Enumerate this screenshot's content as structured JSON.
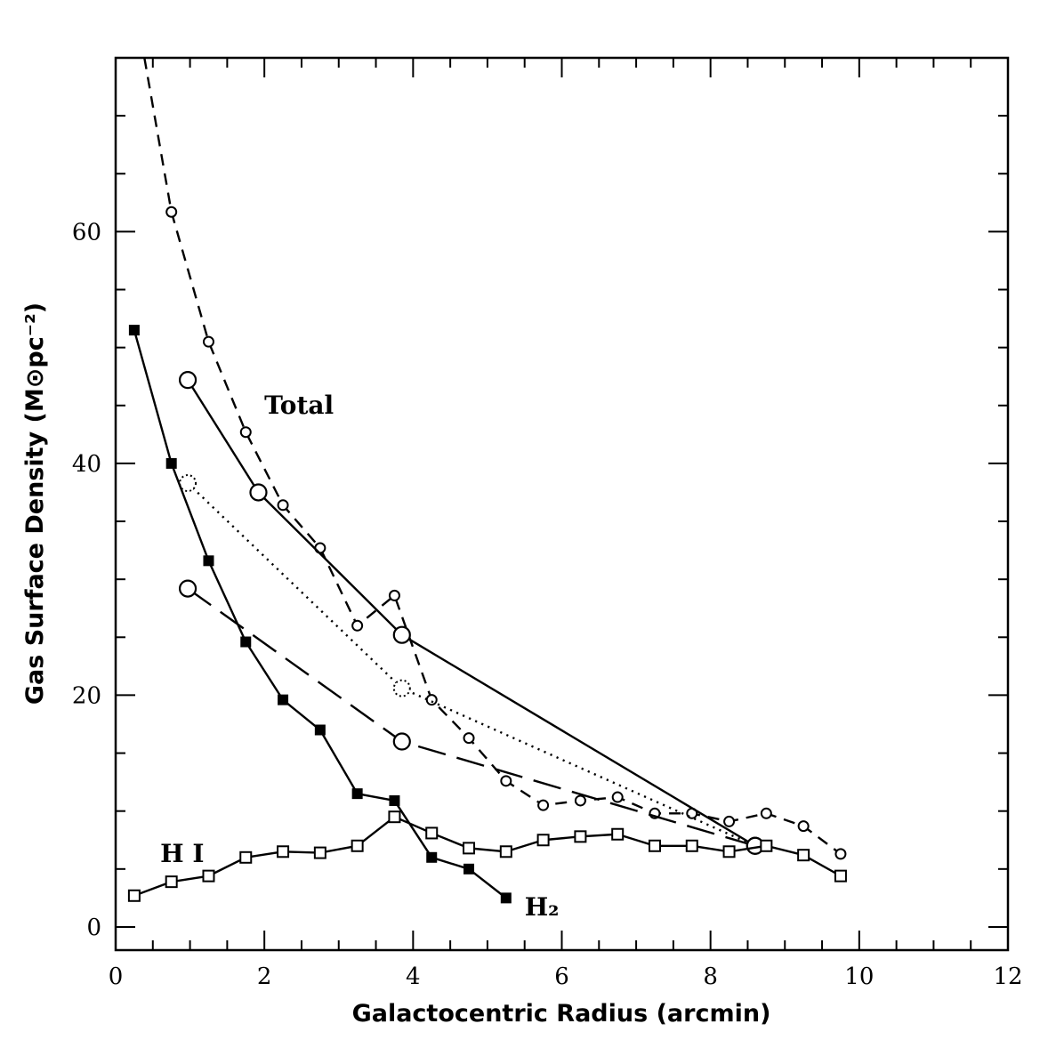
{
  "chart_data": {
    "type": "line",
    "title": "",
    "xlabel": "Galactocentric Radius (arcmin)",
    "ylabel": "Gas Surface Density (M⊙pc⁻²)",
    "xlim": [
      0,
      12
    ],
    "ylim": [
      -2,
      75
    ],
    "x_ticks": [
      0,
      2,
      4,
      6,
      8,
      10,
      12
    ],
    "y_ticks": [
      0,
      20,
      40,
      60
    ],
    "grid": false,
    "legend": "none",
    "annotations": [
      {
        "text": "Total",
        "x": 2.0,
        "y": 44.3
      },
      {
        "text": "H I",
        "x": 0.6,
        "y": 5.6
      },
      {
        "text": "H₂",
        "x": 5.5,
        "y": 1.0
      }
    ],
    "series": [
      {
        "marker": "small-circle",
        "line": "short-dash",
        "x": [
          0.25,
          0.75,
          1.25,
          1.75,
          2.25,
          2.75,
          3.25,
          3.75,
          4.25,
          4.75,
          5.25,
          5.75,
          6.25,
          6.75,
          7.25,
          7.75,
          8.25,
          8.75,
          9.25,
          9.75
        ],
        "values": [
          80,
          61.7,
          50.5,
          42.7,
          36.4,
          32.7,
          26.0,
          28.6,
          19.6,
          16.3,
          12.6,
          10.5,
          10.9,
          11.2,
          9.8,
          9.8,
          9.1,
          9.8,
          8.7,
          6.3
        ]
      },
      {
        "marker": "large-circle",
        "line": "solid",
        "x": [
          0.97,
          1.92,
          3.85,
          8.6
        ],
        "values": [
          47.2,
          37.5,
          25.2,
          7.0
        ]
      },
      {
        "marker": "large-dotted-circle",
        "line": "dotted",
        "x": [
          0.97,
          3.85,
          8.6
        ],
        "values": [
          38.3,
          20.6,
          7.0
        ]
      },
      {
        "marker": "large-circle",
        "line": "long-dash",
        "x": [
          0.97,
          3.85,
          8.6
        ],
        "values": [
          29.2,
          16.0,
          7.0
        ]
      },
      {
        "marker": "filled-square",
        "line": "solid",
        "x": [
          0.25,
          0.75,
          1.25,
          1.75,
          2.25,
          2.75,
          3.25,
          3.75,
          4.25,
          4.75,
          5.25
        ],
        "values": [
          51.5,
          40.0,
          31.6,
          24.6,
          19.6,
          17.0,
          11.5,
          10.9,
          6.0,
          5.0,
          2.5
        ]
      },
      {
        "marker": "open-square",
        "line": "solid",
        "x": [
          0.25,
          0.75,
          1.25,
          1.75,
          2.25,
          2.75,
          3.25,
          3.75,
          4.25,
          4.75,
          5.25,
          5.75,
          6.25,
          6.75,
          7.25,
          7.75,
          8.25,
          8.75,
          9.25,
          9.75
        ],
        "values": [
          2.7,
          3.9,
          4.4,
          6.0,
          6.5,
          6.4,
          7.0,
          9.5,
          8.1,
          6.8,
          6.5,
          7.5,
          7.8,
          8.0,
          7.0,
          7.0,
          6.5,
          7.0,
          6.2,
          4.4
        ]
      }
    ]
  }
}
